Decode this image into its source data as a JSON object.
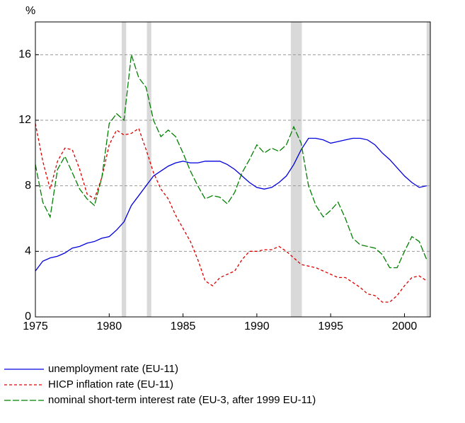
{
  "chart_data": {
    "type": "line",
    "y_unit_label": "%",
    "x": [
      1975,
      1975.5,
      1976,
      1976.5,
      1977,
      1977.5,
      1978,
      1978.5,
      1979,
      1979.5,
      1980,
      1980.5,
      1981,
      1981.5,
      1982,
      1982.5,
      1983,
      1983.5,
      1984,
      1984.5,
      1985,
      1985.5,
      1986,
      1986.5,
      1987,
      1987.5,
      1988,
      1988.5,
      1989,
      1989.5,
      1990,
      1990.5,
      1991,
      1991.5,
      1992,
      1992.5,
      1993,
      1993.5,
      1994,
      1994.5,
      1995,
      1995.5,
      1996,
      1996.5,
      1997,
      1997.5,
      1998,
      1998.5,
      1999,
      1999.5,
      2000,
      2000.5,
      2001,
      2001.5
    ],
    "series": [
      {
        "name": "unemployment rate (EU-11)",
        "color": "#0000dd",
        "dash": "solid",
        "values": [
          2.8,
          3.4,
          3.6,
          3.7,
          3.9,
          4.2,
          4.3,
          4.5,
          4.6,
          4.8,
          4.9,
          5.3,
          5.8,
          6.8,
          7.4,
          8.0,
          8.6,
          8.9,
          9.2,
          9.4,
          9.5,
          9.4,
          9.4,
          9.5,
          9.5,
          9.5,
          9.3,
          9.0,
          8.6,
          8.2,
          7.9,
          7.8,
          7.9,
          8.2,
          8.6,
          9.3,
          10.2,
          10.9,
          10.9,
          10.8,
          10.6,
          10.7,
          10.8,
          10.9,
          10.9,
          10.8,
          10.5,
          10.0,
          9.6,
          9.1,
          8.6,
          8.2,
          7.9,
          8.0
        ]
      },
      {
        "name": "HICP inflation rate (EU-11)",
        "color": "#dd0000",
        "dash": "4,3",
        "values": [
          11.8,
          9.5,
          7.8,
          9.5,
          10.3,
          10.2,
          9.0,
          7.5,
          7.2,
          8.5,
          10.5,
          11.4,
          11.1,
          11.2,
          11.5,
          10.2,
          8.8,
          7.8,
          7.2,
          6.2,
          5.4,
          4.6,
          3.5,
          2.2,
          1.9,
          2.4,
          2.6,
          2.8,
          3.5,
          4.0,
          4.0,
          4.1,
          4.1,
          4.3,
          4.0,
          3.6,
          3.2,
          3.1,
          3.0,
          2.8,
          2.6,
          2.4,
          2.4,
          2.1,
          1.8,
          1.4,
          1.3,
          0.9,
          0.9,
          1.3,
          1.9,
          2.4,
          2.5,
          2.2
        ]
      },
      {
        "name": "nominal short-term interest rate (EU-3, after 1999 EU-11)",
        "color": "#008000",
        "dash": "9,3",
        "values": [
          9.3,
          7.0,
          6.1,
          9.0,
          9.8,
          8.8,
          7.8,
          7.2,
          6.8,
          8.5,
          11.8,
          12.4,
          12.0,
          16.0,
          14.6,
          14.0,
          12.0,
          11.0,
          11.4,
          11.0,
          10.0,
          8.9,
          8.0,
          7.2,
          7.4,
          7.3,
          6.9,
          7.6,
          8.8,
          9.6,
          10.5,
          10.0,
          10.3,
          10.1,
          10.5,
          11.6,
          10.6,
          8.0,
          6.8,
          6.1,
          6.5,
          7.0,
          6.0,
          4.8,
          4.4,
          4.3,
          4.2,
          3.8,
          3.0,
          3.0,
          4.0,
          4.9,
          4.6,
          3.5
        ]
      }
    ],
    "shaded_periods": [
      [
        1980.85,
        1981.15
      ],
      [
        1982.55,
        1982.85
      ],
      [
        1992.3,
        1993.05
      ],
      [
        2001.5,
        2001.75
      ]
    ],
    "shade_color": "#d9d9d9",
    "xlim": [
      1975,
      2001.75
    ],
    "xticks": [
      1975,
      1980,
      1985,
      1990,
      1995,
      2000
    ],
    "ylim": [
      0,
      18
    ],
    "yticks": [
      0,
      4,
      8,
      12,
      16
    ],
    "grid": true
  }
}
